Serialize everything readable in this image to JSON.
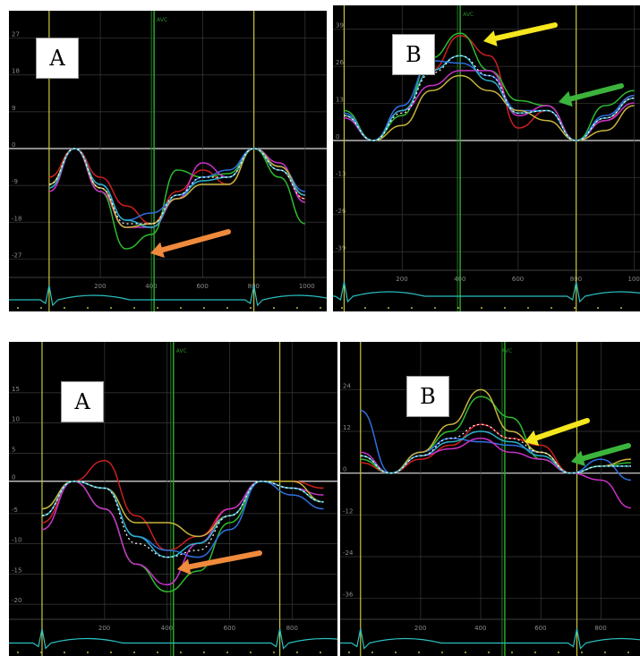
{
  "chart_data": [
    {
      "type": "line",
      "panel_label": "A",
      "yticks": [
        "27",
        "18",
        "9",
        "0",
        "-9",
        "-18",
        "-27"
      ],
      "xticks": [
        "200",
        "400",
        "600",
        "800",
        "1000"
      ],
      "avc_label": "AVC",
      "arrow_color": "#f08a3c",
      "x": [
        0,
        100,
        200,
        300,
        400,
        500,
        600,
        700,
        800,
        900,
        1000
      ],
      "series": [
        {
          "color": "#cc1f1f",
          "values": [
            -8,
            0,
            -8,
            -16,
            -21,
            -12,
            -6,
            -10,
            0,
            -6,
            -14
          ]
        },
        {
          "color": "#2dbb2d",
          "values": [
            -10,
            0,
            -12,
            -28,
            -24,
            -6,
            -8,
            -7,
            0,
            -8,
            -21
          ]
        },
        {
          "color": "#2f6fe0",
          "values": [
            -10,
            0,
            -10,
            -20,
            -18,
            -14,
            -8,
            -6,
            0,
            -5,
            -12
          ]
        },
        {
          "color": "#c832c8",
          "values": [
            -12,
            0,
            -12,
            -22,
            -22,
            -14,
            -4,
            -8,
            0,
            -4,
            -15
          ]
        },
        {
          "color": "#c8b43c",
          "values": [
            -10,
            0,
            -11,
            -22,
            -21,
            -14,
            -10,
            -10,
            0,
            -5,
            -13
          ]
        },
        {
          "color": "#2bb0c8",
          "values": [
            -11,
            0,
            -10,
            -20,
            -22,
            -13,
            -9,
            -8,
            0,
            -6,
            -13
          ]
        },
        {
          "color": "#ffffff",
          "dashed": true,
          "values": [
            -10,
            0,
            -11,
            -21,
            -21,
            -13,
            -8,
            -8,
            0,
            -6,
            -14
          ]
        }
      ]
    },
    {
      "type": "line",
      "panel_label": "B",
      "yticks": [
        "39",
        "26",
        "13",
        "0",
        "-13",
        "-26",
        "-39"
      ],
      "xticks": [
        "200",
        "400",
        "600",
        "800",
        "1000"
      ],
      "avc_label": "AVC",
      "arrow_colors": [
        "#f5e61e",
        "#3cb43c"
      ],
      "x": [
        0,
        100,
        200,
        300,
        400,
        500,
        600,
        700,
        800,
        900,
        1000
      ],
      "series": [
        {
          "color": "#cc1f1f",
          "values": [
            10,
            0,
            12,
            28,
            42,
            34,
            5,
            12,
            0,
            8,
            18
          ]
        },
        {
          "color": "#2dbb2d",
          "values": [
            12,
            0,
            10,
            33,
            43,
            28,
            16,
            14,
            0,
            14,
            20
          ]
        },
        {
          "color": "#2f6fe0",
          "values": [
            11,
            0,
            14,
            32,
            31,
            26,
            12,
            12,
            0,
            10,
            18
          ]
        },
        {
          "color": "#c832c8",
          "values": [
            9,
            0,
            12,
            22,
            28,
            28,
            10,
            14,
            0,
            8,
            15
          ]
        },
        {
          "color": "#c8b43c",
          "values": [
            10,
            0,
            6,
            20,
            26,
            20,
            12,
            8,
            0,
            4,
            14
          ]
        },
        {
          "color": "#2bb0c8",
          "values": [
            10,
            0,
            12,
            28,
            34,
            24,
            11,
            12,
            0,
            9,
            17
          ]
        },
        {
          "color": "#ffffff",
          "dashed": true,
          "values": [
            10,
            0,
            11,
            27,
            34,
            26,
            11,
            12,
            0,
            9,
            17
          ]
        }
      ]
    },
    {
      "type": "line",
      "panel_label": "A",
      "yticks": [
        "15",
        "10",
        "5",
        "0",
        "-5",
        "-10",
        "-15",
        "-20"
      ],
      "xticks": [
        "200",
        "400",
        "600",
        "800"
      ],
      "avc_label": "AVC",
      "arrow_color": "#f08a3c",
      "x": [
        0,
        100,
        200,
        300,
        400,
        500,
        600,
        700,
        800,
        900
      ],
      "series": [
        {
          "color": "#cc1f1f",
          "values": [
            -6,
            0,
            3,
            -5,
            -10,
            -8,
            -4,
            0,
            0,
            -1
          ]
        },
        {
          "color": "#2dbb2d",
          "values": [
            -4,
            0,
            -4,
            -12,
            -16,
            -13,
            -6,
            0,
            -1,
            -3
          ]
        },
        {
          "color": "#2f6fe0",
          "values": [
            -5,
            0,
            -1,
            -8,
            -10,
            -11,
            -7,
            0,
            -2,
            -4
          ]
        },
        {
          "color": "#c832c8",
          "values": [
            -7,
            0,
            -4,
            -12,
            -15,
            -9,
            -4,
            0,
            -1,
            -2
          ]
        },
        {
          "color": "#c8b43c",
          "values": [
            -4,
            0,
            -1,
            -6,
            -6,
            -8,
            -5,
            0,
            0,
            -3
          ]
        },
        {
          "color": "#2bb0c8",
          "values": [
            -5,
            0,
            -1,
            -8,
            -11,
            -9,
            -5,
            0,
            -1,
            -3
          ]
        },
        {
          "color": "#ffffff",
          "dashed": true,
          "values": [
            -5,
            0,
            -1,
            -9,
            -11,
            -10,
            -5,
            0,
            -1,
            -3
          ]
        }
      ]
    },
    {
      "type": "line",
      "panel_label": "B",
      "yticks": [
        "24",
        "12",
        "0",
        "-12",
        "-24",
        "-36"
      ],
      "xticks": [
        "200",
        "400",
        "600",
        "800"
      ],
      "avc_label": "AVC",
      "arrow_colors": [
        "#f5e61e",
        "#3cb43c"
      ],
      "x": [
        0,
        100,
        200,
        300,
        400,
        500,
        600,
        700,
        800,
        900
      ],
      "series": [
        {
          "color": "#cc1f1f",
          "values": [
            3,
            0,
            4,
            8,
            14,
            10,
            8,
            0,
            2,
            4
          ]
        },
        {
          "color": "#2dbb2d",
          "values": [
            4,
            0,
            6,
            12,
            22,
            16,
            4,
            0,
            2,
            3
          ]
        },
        {
          "color": "#2f6fe0",
          "values": [
            18,
            0,
            6,
            10,
            9,
            8,
            6,
            0,
            4,
            -2
          ]
        },
        {
          "color": "#c832c8",
          "values": [
            6,
            0,
            5,
            7,
            10,
            6,
            4,
            0,
            -2,
            -10
          ]
        },
        {
          "color": "#c8b43c",
          "values": [
            5,
            0,
            6,
            14,
            24,
            12,
            6,
            0,
            2,
            4
          ]
        },
        {
          "color": "#2bb0c8",
          "values": [
            5,
            0,
            5,
            9,
            12,
            9,
            5,
            0,
            2,
            2
          ]
        },
        {
          "color": "#ffffff",
          "dashed": true,
          "values": [
            5,
            0,
            5,
            10,
            14,
            10,
            6,
            0,
            2,
            2
          ]
        }
      ]
    }
  ]
}
